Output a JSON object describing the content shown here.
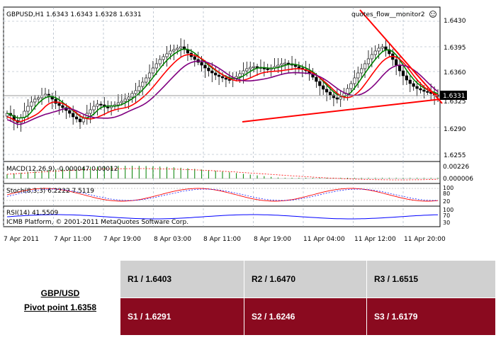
{
  "chart": {
    "header": "GBPUSD,H1  1.6343 1.6343 1.6328 1.6331",
    "indicator_label": "quotes_flow__monitor2",
    "price_ticks": [
      "1.6430",
      "1.6395",
      "1.6360",
      "1.6325",
      "1.6290",
      "1.6255"
    ],
    "current_price": "1.6331",
    "macd_label": "MACD(12,26,9) -0.000047 0.00012",
    "macd_ticks": [
      "0.00226",
      "0.000006"
    ],
    "stoch_label": "Stoch(8,3,3) 6.2222 7.5119",
    "stoch_ticks": [
      "100",
      "80",
      "20"
    ],
    "rsi_label": "RSI(14) 41.5509",
    "rsi_ticks": [
      "100",
      "70",
      "30"
    ],
    "copyright": "ICMB Platform, © 2001-2011 MetaQuotes Software Corp.",
    "time_labels": [
      "7 Apr 2011",
      "7 Apr 11:00",
      "7 Apr 19:00",
      "8 Apr 03:00",
      "8 Apr 11:00",
      "8 Apr 19:00",
      "11 Apr 04:00",
      "11 Apr 12:00",
      "11 Apr 20:00"
    ]
  },
  "pivot": {
    "pair": "GBP/USD",
    "pivot_point": "Pivot point 1.6358",
    "r1": "R1 / 1.6403",
    "r2": "R2 / 1.6470",
    "r3": "R3 / 1.6515",
    "s1": "S1 / 1.6291",
    "s2": "S2 / 1.6246",
    "s3": "S3 / 1.6179"
  }
}
